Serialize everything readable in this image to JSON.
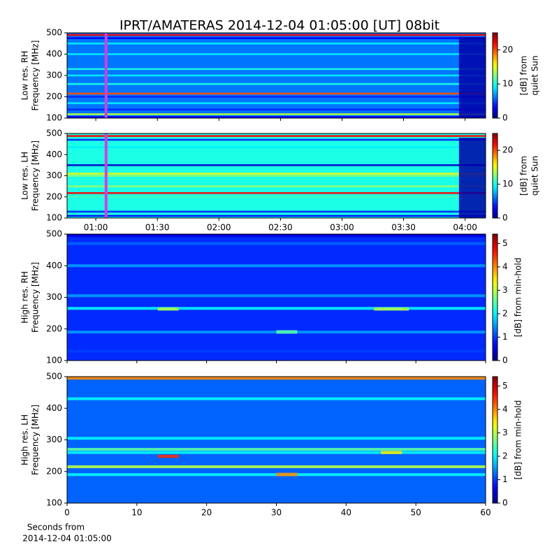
{
  "title": "IPRT/AMATERAS 2014-12-04 01:05:00 [UT]   08bit",
  "chart_data": [
    {
      "type": "heatmap",
      "ylabel": [
        "Low res. RH",
        "Frequency [MHz]"
      ],
      "colorbar_label": [
        "[dB] from",
        "quiet Sun"
      ],
      "xlim": [
        46,
        250
      ],
      "ylim": [
        100,
        500
      ],
      "yticks": [
        100,
        200,
        300,
        400,
        500
      ],
      "clim": [
        0,
        25
      ],
      "cticks": [
        0,
        10,
        20
      ],
      "base_level": 6,
      "band_freqs": [
        490,
        475,
        450,
        400,
        330,
        300,
        260,
        215,
        200,
        170,
        140,
        118,
        105
      ],
      "band_levels": [
        22,
        3,
        9,
        9,
        10,
        9,
        10,
        20,
        4,
        9,
        4,
        14,
        3
      ],
      "patches": [
        {
          "x": [
            237,
            250
          ],
          "y": [
            100,
            480
          ],
          "level": 1
        }
      ],
      "marker_x": 65,
      "marker_color": "#d040e0"
    },
    {
      "type": "heatmap",
      "ylabel": [
        "Low res. LH",
        "Frequency [MHz]"
      ],
      "colorbar_label": [
        "[dB] from",
        "quiet Sun"
      ],
      "xlim": [
        46,
        250
      ],
      "ylim": [
        100,
        500
      ],
      "yticks": [
        100,
        200,
        300,
        400,
        500
      ],
      "xticks": [
        {
          "value": 60,
          "label": "01:00"
        },
        {
          "value": 90,
          "label": "01:30"
        },
        {
          "value": 120,
          "label": "02:00"
        },
        {
          "value": 150,
          "label": "02:30"
        },
        {
          "value": 180,
          "label": "03:00"
        },
        {
          "value": 210,
          "label": "03:30"
        },
        {
          "value": 240,
          "label": "04:00"
        }
      ],
      "clim": [
        0,
        25
      ],
      "cticks": [
        0,
        10,
        20
      ],
      "base_level": 10,
      "band_freqs": [
        488,
        470,
        435,
        350,
        310,
        300,
        250,
        218,
        200,
        130,
        110
      ],
      "band_levels": [
        22,
        4,
        9,
        2,
        15,
        13,
        13,
        22,
        11,
        4,
        3
      ],
      "patches": [
        {
          "x": [
            237,
            250
          ],
          "y": [
            100,
            480
          ],
          "level": 1
        }
      ],
      "marker_x": 65,
      "marker_color": "#d040e0"
    },
    {
      "type": "heatmap",
      "ylabel": [
        "High res. RH",
        "Frequency [MHz]"
      ],
      "colorbar_label": [
        "[dB] from min-hold"
      ],
      "xlim": [
        0,
        60
      ],
      "ylim": [
        100,
        500
      ],
      "yticks": [
        100,
        200,
        300,
        400,
        500
      ],
      "clim": [
        0,
        5.4
      ],
      "cticks": [
        0,
        1,
        2,
        3,
        4,
        5
      ],
      "base_level": 0.9,
      "band_freqs": [
        495,
        470,
        400,
        305,
        265,
        190,
        130
      ],
      "band_levels": [
        0.5,
        1.2,
        1.5,
        1.5,
        2,
        1.5,
        1
      ],
      "patches": [
        {
          "x": [
            13,
            16
          ],
          "y": [
            258,
            268
          ],
          "level": 3
        },
        {
          "x": [
            44,
            49
          ],
          "y": [
            258,
            268
          ],
          "level": 3
        },
        {
          "x": [
            30,
            33
          ],
          "y": [
            185,
            196
          ],
          "level": 2.5
        }
      ]
    },
    {
      "type": "heatmap",
      "ylabel": [
        "High res. LH",
        "Frequency [MHz]"
      ],
      "colorbar_label": [
        "[dB] from min-hold"
      ],
      "xlabel": [
        "Seconds from",
        "2014-12-04 01:05:00"
      ],
      "xlim": [
        0,
        60
      ],
      "ylim": [
        100,
        500
      ],
      "yticks": [
        100,
        200,
        300,
        400,
        500
      ],
      "xticks": [
        0,
        10,
        20,
        30,
        40,
        50,
        60
      ],
      "clim": [
        0,
        5.4
      ],
      "cticks": [
        0,
        1,
        2,
        3,
        4,
        5
      ],
      "base_level": 1.2,
      "band_freqs": [
        495,
        430,
        305,
        270,
        260,
        215,
        190
      ],
      "band_levels": [
        4,
        2,
        2,
        2.5,
        2,
        3,
        2
      ],
      "patches": [
        {
          "x": [
            13,
            16
          ],
          "y": [
            243,
            253
          ],
          "level": 4.5
        },
        {
          "x": [
            30,
            33
          ],
          "y": [
            185,
            196
          ],
          "level": 4
        },
        {
          "x": [
            45,
            48
          ],
          "y": [
            255,
            265
          ],
          "level": 3.5
        }
      ]
    }
  ]
}
